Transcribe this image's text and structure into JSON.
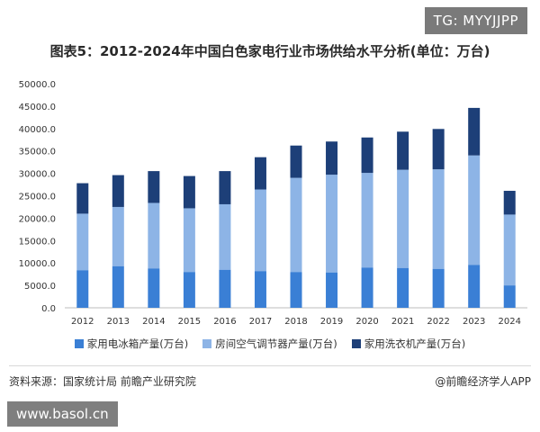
{
  "watermark_badge": "TG: MYYJJPP",
  "site_badge": "www.basol.cn",
  "footer": {
    "source": "资料来源：国家统计局 前瞻产业研究院",
    "credit": "@前瞻经济学人APP"
  },
  "colors": {
    "fridge": "#3a7fd5",
    "ac": "#8db4e6",
    "washer": "#1d3f78"
  },
  "chart_data": {
    "type": "bar",
    "stacked": true,
    "title": "图表5：2012-2024年中国白色家电行业市场供给水平分析(单位：万台)",
    "categories": [
      "2012",
      "2013",
      "2014",
      "2015",
      "2016",
      "2017",
      "2018",
      "2019",
      "2020",
      "2021",
      "2022",
      "2023",
      "2024"
    ],
    "series": [
      {
        "name": "家用电冰箱产量(万台)",
        "values": [
          8400,
          9300,
          8800,
          8000,
          8500,
          8200,
          8000,
          7900,
          9000,
          8900,
          8700,
          9600,
          5000
        ]
      },
      {
        "name": "房间空气调节器产量(万台)",
        "values": [
          12600,
          13200,
          14600,
          14200,
          14600,
          18200,
          21000,
          21800,
          21100,
          21900,
          22200,
          24400,
          15800
        ]
      },
      {
        "name": "家用洗衣机产量(万台)",
        "values": [
          6800,
          7100,
          7100,
          7200,
          7400,
          7200,
          7200,
          7400,
          7900,
          8500,
          9000,
          10600,
          5300
        ]
      }
    ],
    "ylim": [
      0,
      50000
    ],
    "yticks": [
      "0.0",
      "5000.0",
      "10000.0",
      "15000.0",
      "20000.0",
      "25000.0",
      "30000.0",
      "35000.0",
      "40000.0",
      "45000.0",
      "50000.0"
    ],
    "legend_position": "bottom",
    "grid": false
  }
}
